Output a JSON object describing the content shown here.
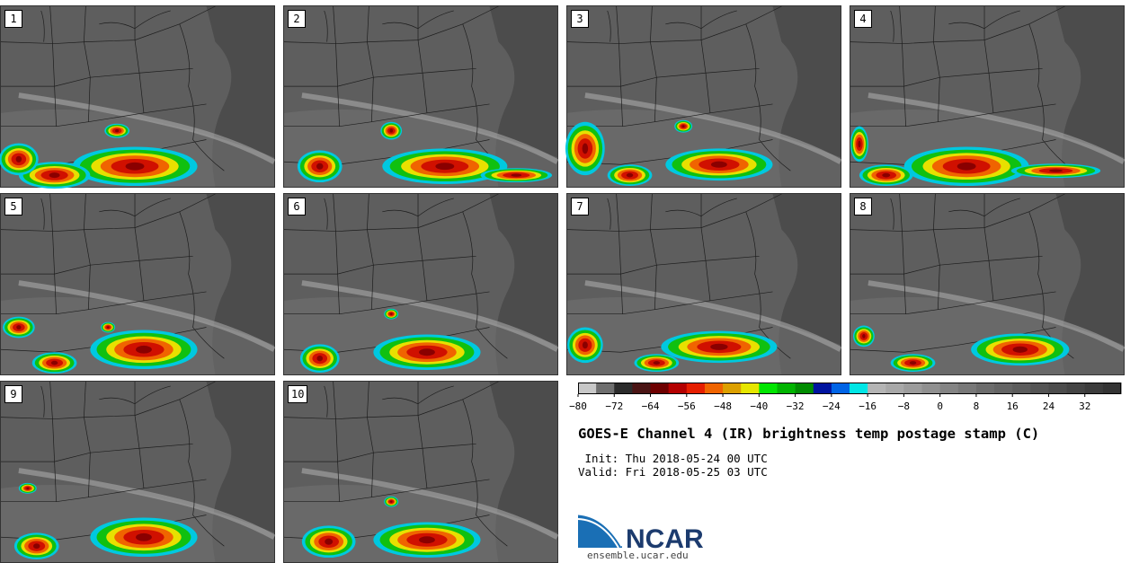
{
  "title": "GOES-E Channel 4 (IR) brightness temp postage stamp (C)",
  "init": " Init: Thu 2018-05-24 00 UTC",
  "valid": "Valid: Fri 2018-05-25 03 UTC",
  "logo": {
    "text": "NCAR",
    "url": "ensemble.ucar.edu"
  },
  "panels": [
    {
      "label": "1"
    },
    {
      "label": "2"
    },
    {
      "label": "3"
    },
    {
      "label": "4"
    },
    {
      "label": "5"
    },
    {
      "label": "6"
    },
    {
      "label": "7"
    },
    {
      "label": "8"
    },
    {
      "label": "9"
    },
    {
      "label": "10"
    }
  ],
  "colorbar": {
    "tick_labels": [
      "−80",
      "−72",
      "−64",
      "−56",
      "−48",
      "−40",
      "−32",
      "−24",
      "−16",
      "−8",
      "0",
      "8",
      "16",
      "24",
      "32"
    ],
    "colors": [
      "#c8c8c8",
      "#6e6e6e",
      "#2b2b2b",
      "#4a1414",
      "#6e0000",
      "#b40000",
      "#e61e00",
      "#f06400",
      "#dca000",
      "#e6e600",
      "#00e600",
      "#00b400",
      "#008c00",
      "#0014a0",
      "#0064e6",
      "#00e6e6",
      "#b4b4b4",
      "#a8a8a8",
      "#9c9c9c",
      "#909090",
      "#848484",
      "#787878",
      "#6c6c6c",
      "#646464",
      "#5c5c5c",
      "#545454",
      "#4c4c4c",
      "#444444",
      "#3c3c3c",
      "#343434"
    ]
  }
}
